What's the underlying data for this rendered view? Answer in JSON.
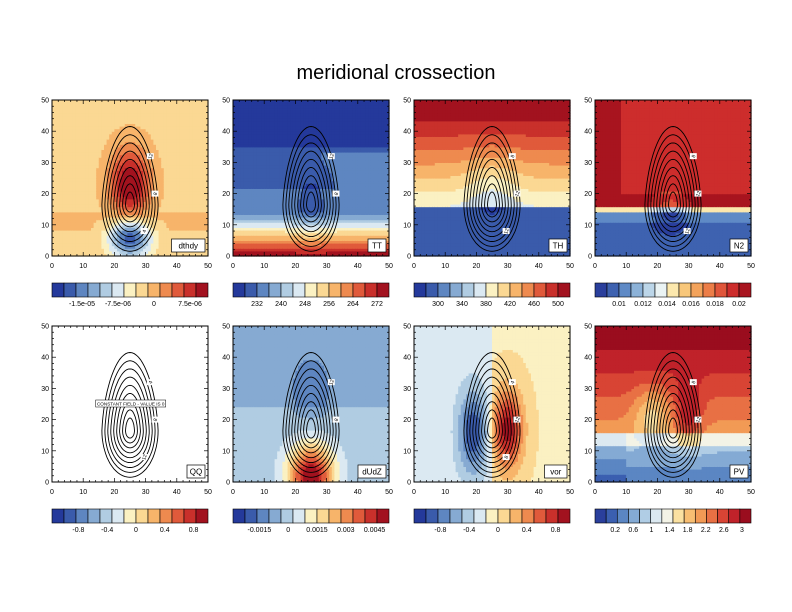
{
  "title": "meridional crossection",
  "axes": {
    "xlim": [
      0,
      50
    ],
    "ylim": [
      0,
      50
    ],
    "xticks": [
      "0",
      "10",
      "20",
      "30",
      "40",
      "50"
    ],
    "yticks": [
      "0",
      "10",
      "20",
      "30",
      "40",
      "50"
    ]
  },
  "chart_data": [
    {
      "type": "heatmap",
      "panel_label": "dthdy",
      "field": "dthdy",
      "colorbar_ticks": [
        "-1.5e-05",
        "-7.5e-06",
        "0",
        "7.5e-06"
      ],
      "contour_labels": [
        "12",
        "8",
        "4"
      ],
      "description_of_pattern": "uniform light orange background, red maximum centred near x=25 y=22, blue minimum near x=25 y=7, pale band y=8-14"
    },
    {
      "type": "heatmap",
      "panel_label": "TT",
      "field": "TT",
      "colorbar_ticks": [
        "232",
        "240",
        "248",
        "256",
        "264",
        "272"
      ],
      "contour_labels": [
        "12",
        "8"
      ],
      "description_of_pattern": "dark blue above y=35, blue middle, warm yellow/orange/red bands near bottom y<10"
    },
    {
      "type": "heatmap",
      "panel_label": "TH",
      "field": "TH",
      "colorbar_ticks": [
        "300",
        "340",
        "380",
        "420",
        "460",
        "500"
      ],
      "contour_labels": [
        "8",
        "12",
        "12"
      ],
      "description_of_pattern": "red at top y>45 through yellow to light blue and dark blue below y=20"
    },
    {
      "type": "heatmap",
      "panel_label": "N2",
      "field": "N2",
      "colorbar_ticks": [
        "0.01",
        "0.012",
        "0.014",
        "0.016",
        "0.018",
        "0.02"
      ],
      "contour_labels": [
        "8",
        "12",
        "12"
      ],
      "description_of_pattern": "red in upper half with dark red band y=15-20, sharp transition at y=15 to blue below"
    },
    {
      "type": "contour",
      "panel_label": "QQ",
      "field": "QQ",
      "colorbar_ticks": [
        "-0.8",
        "-0.4",
        "0",
        "0.4",
        "0.8"
      ],
      "contour_labels": [
        "4",
        "8",
        "12"
      ],
      "annotation": "CONSTANT FIELD - VALUE IS 0",
      "description_of_pattern": "no shading; only jet contours"
    },
    {
      "type": "heatmap",
      "panel_label": "dUdZ",
      "field": "dUdZ",
      "colorbar_ticks": [
        "-0.0015",
        "0",
        "0.0015",
        "0.003",
        "0.0045"
      ],
      "contour_labels": [
        "12",
        "8"
      ],
      "description_of_pattern": "light blue background, deeper blue lobe above jet core y=25-45, orange/red below jet core y<10"
    },
    {
      "type": "heatmap",
      "panel_label": "vor",
      "field": "vor",
      "colorbar_ticks": [
        "-0.8",
        "-0.4",
        "0",
        "0.4",
        "0.8"
      ],
      "contour_labels": [
        "4",
        "12",
        "8"
      ],
      "description_of_pattern": "pale blue left half, pale yellow right half, blue dipole lobe left of core x=20, red lobe right of core x=30"
    },
    {
      "type": "heatmap",
      "panel_label": "PV",
      "field": "PV",
      "colorbar_ticks": [
        "0.2",
        "0.6",
        "1",
        "1.4",
        "1.8",
        "2.2",
        "2.6",
        "3"
      ],
      "contour_labels": [
        "8",
        "12"
      ],
      "description_of_pattern": "red/orange upper region, white band near y=15, blue lower region, red tongue intruding into jet core"
    }
  ]
}
